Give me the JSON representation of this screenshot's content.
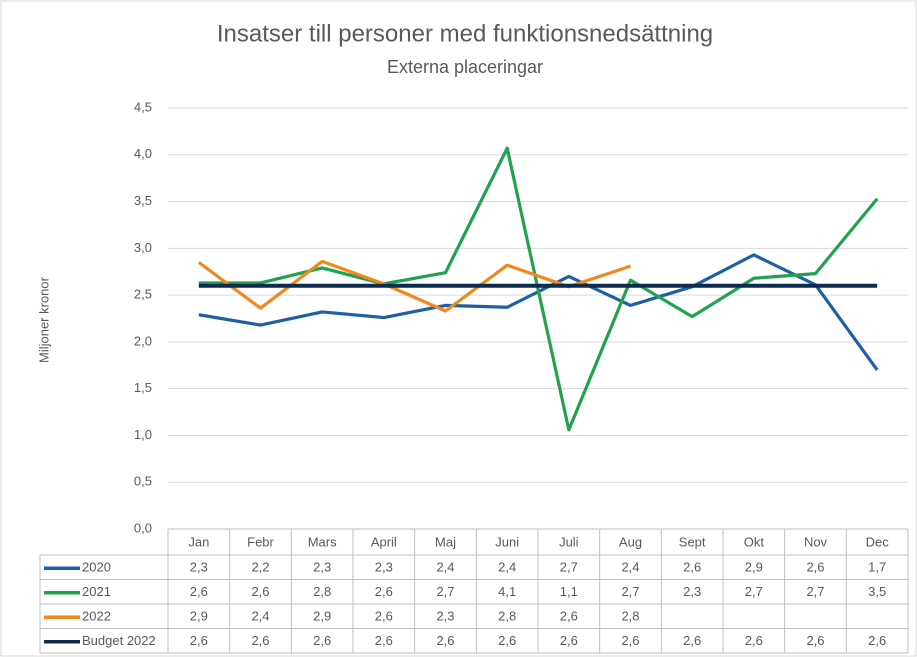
{
  "chart_data": {
    "type": "line",
    "title": "Insatser till personer med funktionsnedsättning",
    "subtitle": "Externa placeringar",
    "y_label": "Miljoner kronor",
    "categories": [
      "Jan",
      "Febr",
      "Mars",
      "April",
      "Maj",
      "Juni",
      "Juli",
      "Aug",
      "Sept",
      "Okt",
      "Nov",
      "Dec"
    ],
    "series": [
      {
        "name": "2020",
        "color": "#1f5fa6",
        "values": [
          2.29,
          2.18,
          2.32,
          2.26,
          2.39,
          2.37,
          2.7,
          2.39,
          2.59,
          2.93,
          2.61,
          1.7
        ],
        "value_labels": [
          "2,3",
          "2,2",
          "2,3",
          "2,3",
          "2,4",
          "2,4",
          "2,7",
          "2,4",
          "2,6",
          "2,9",
          "2,6",
          "1,7"
        ]
      },
      {
        "name": "2021",
        "color": "#22a24f",
        "values": [
          2.63,
          2.63,
          2.79,
          2.62,
          2.74,
          4.07,
          1.06,
          2.66,
          2.27,
          2.68,
          2.73,
          3.53
        ],
        "value_labels": [
          "2,6",
          "2,6",
          "2,8",
          "2,6",
          "2,7",
          "4,1",
          "1,1",
          "2,7",
          "2,3",
          "2,7",
          "2,7",
          "3,5"
        ]
      },
      {
        "name": "2022",
        "color": "#f08a1e",
        "values": [
          2.85,
          2.36,
          2.86,
          2.62,
          2.33,
          2.82,
          2.59,
          2.81,
          null,
          null,
          null,
          null
        ],
        "value_labels": [
          "2,9",
          "2,4",
          "2,9",
          "2,6",
          "2,3",
          "2,8",
          "2,6",
          "2,8",
          null,
          null,
          null,
          null
        ]
      },
      {
        "name": "Budget 2022",
        "color": "#0d2b4e",
        "values": [
          2.6,
          2.6,
          2.6,
          2.6,
          2.6,
          2.6,
          2.6,
          2.6,
          2.6,
          2.6,
          2.6,
          2.6
        ],
        "value_labels": [
          "2,6",
          "2,6",
          "2,6",
          "2,6",
          "2,6",
          "2,6",
          "2,6",
          "2,6",
          "2,6",
          "2,6",
          "2,6",
          "2,6"
        ]
      }
    ],
    "ylim": [
      0,
      4.5
    ],
    "yticks": [
      {
        "value": 0,
        "label": "0,0"
      },
      {
        "value": 0.5,
        "label": "0,5"
      },
      {
        "value": 1,
        "label": "1,0"
      },
      {
        "value": 1.5,
        "label": "1,5"
      },
      {
        "value": 2,
        "label": "2,0"
      },
      {
        "value": 2.5,
        "label": "2,5"
      },
      {
        "value": 3,
        "label": "3,0"
      },
      {
        "value": 3.5,
        "label": "3,5"
      },
      {
        "value": 4,
        "label": "4,0"
      },
      {
        "value": 4.5,
        "label": "4,5"
      }
    ],
    "grid": true
  }
}
